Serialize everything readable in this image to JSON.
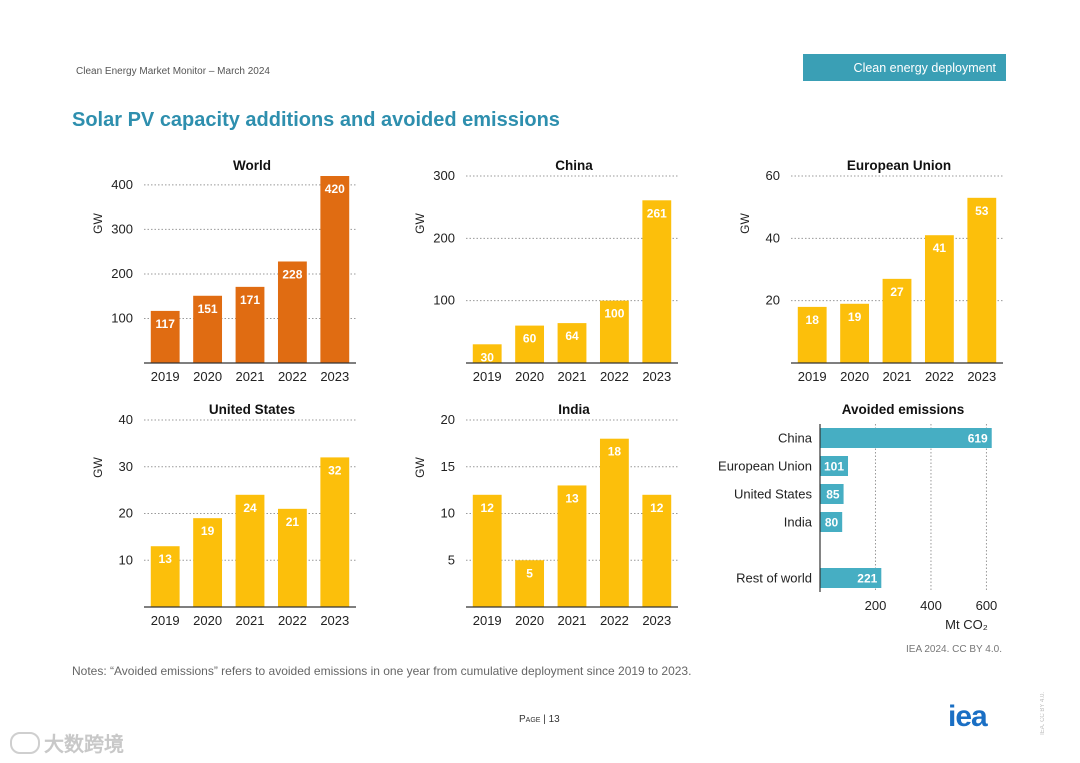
{
  "header": {
    "left_text": "Clean Energy Market Monitor – March 2024",
    "section_badge": "Clean energy deployment"
  },
  "page_title": "Solar PV capacity additions and avoided emissions",
  "colors": {
    "world_bar": "#e06c12",
    "country_bar": "#fcbf0b",
    "emissions_bar": "#46aec3",
    "title": "#2e8fae",
    "badge": "#3a9fb5"
  },
  "chart_data": [
    {
      "id": "world",
      "type": "bar",
      "title": "World",
      "ylabel": "GW",
      "categories": [
        "2019",
        "2020",
        "2021",
        "2022",
        "2023"
      ],
      "values": [
        117,
        151,
        171,
        228,
        420
      ],
      "data_labels": [
        "117",
        "151",
        "171",
        "228",
        "420"
      ],
      "ylim": [
        0,
        420
      ],
      "yticks": [
        100,
        200,
        300,
        400
      ],
      "ytick_labels": [
        "100",
        "200",
        "300",
        "400"
      ],
      "color": "#e06c12",
      "grid": true
    },
    {
      "id": "china",
      "type": "bar",
      "title": "China",
      "ylabel": "GW",
      "categories": [
        "2019",
        "2020",
        "2021",
        "2022",
        "2023"
      ],
      "values": [
        30,
        60,
        64,
        100,
        261
      ],
      "data_labels": [
        "30",
        "60",
        "64",
        "100",
        "261"
      ],
      "ylim": [
        0,
        300
      ],
      "yticks": [
        100,
        200,
        300
      ],
      "ytick_labels": [
        "100",
        "200",
        "300"
      ],
      "color": "#fcbf0b",
      "grid": true
    },
    {
      "id": "eu",
      "type": "bar",
      "title": "European Union",
      "ylabel": "GW",
      "categories": [
        "2019",
        "2020",
        "2021",
        "2022",
        "2023"
      ],
      "values": [
        18,
        19,
        27,
        41,
        53
      ],
      "data_labels": [
        "18",
        "19",
        "27",
        "41",
        "53"
      ],
      "ylim": [
        0,
        60
      ],
      "yticks": [
        20,
        40,
        60
      ],
      "ytick_labels": [
        "20",
        "40",
        "60"
      ],
      "color": "#fcbf0b",
      "grid": true
    },
    {
      "id": "us",
      "type": "bar",
      "title": "United States",
      "ylabel": "GW",
      "categories": [
        "2019",
        "2020",
        "2021",
        "2022",
        "2023"
      ],
      "values": [
        13,
        19,
        24,
        21,
        32
      ],
      "data_labels": [
        "13",
        "19",
        "24",
        "21",
        "32"
      ],
      "ylim": [
        0,
        40
      ],
      "yticks": [
        10,
        20,
        30,
        40
      ],
      "ytick_labels": [
        "10",
        "20",
        "30",
        "40"
      ],
      "color": "#fcbf0b",
      "grid": true
    },
    {
      "id": "india",
      "type": "bar",
      "title": "India",
      "ylabel": "GW",
      "categories": [
        "2019",
        "2020",
        "2021",
        "2022",
        "2023"
      ],
      "values": [
        12,
        5,
        13,
        18,
        12
      ],
      "data_labels": [
        "12",
        "5",
        "13",
        "18",
        "12"
      ],
      "ylim": [
        0,
        20
      ],
      "yticks": [
        5,
        10,
        15,
        20
      ],
      "ytick_labels": [
        "5",
        "10",
        "15",
        "20"
      ],
      "color": "#fcbf0b",
      "grid": true
    },
    {
      "id": "avoided",
      "type": "hbar",
      "title": "Avoided emissions",
      "xlabel": "Mt CO₂",
      "categories": [
        "China",
        "European Union",
        "United States",
        "India",
        "Rest of world"
      ],
      "values": [
        619,
        101,
        85,
        80,
        221
      ],
      "data_labels": [
        "619",
        "101",
        "85",
        "80",
        "221"
      ],
      "xlim": [
        0,
        620
      ],
      "xticks": [
        200,
        400,
        600
      ],
      "xtick_labels": [
        "200",
        "400",
        "600"
      ],
      "color": "#46aec3",
      "grid": true
    }
  ],
  "notes": "Notes: “Avoided emissions” refers to avoided emissions in one year from cumulative deployment since 2019 to 2023.",
  "source": "IEA 2024. CC BY 4.0.",
  "footer": {
    "page_word": "Page",
    "page_number": "| 13",
    "logo": "iea",
    "side_license": "IEA. CC BY 4.0.",
    "watermark": "大数跨境"
  }
}
